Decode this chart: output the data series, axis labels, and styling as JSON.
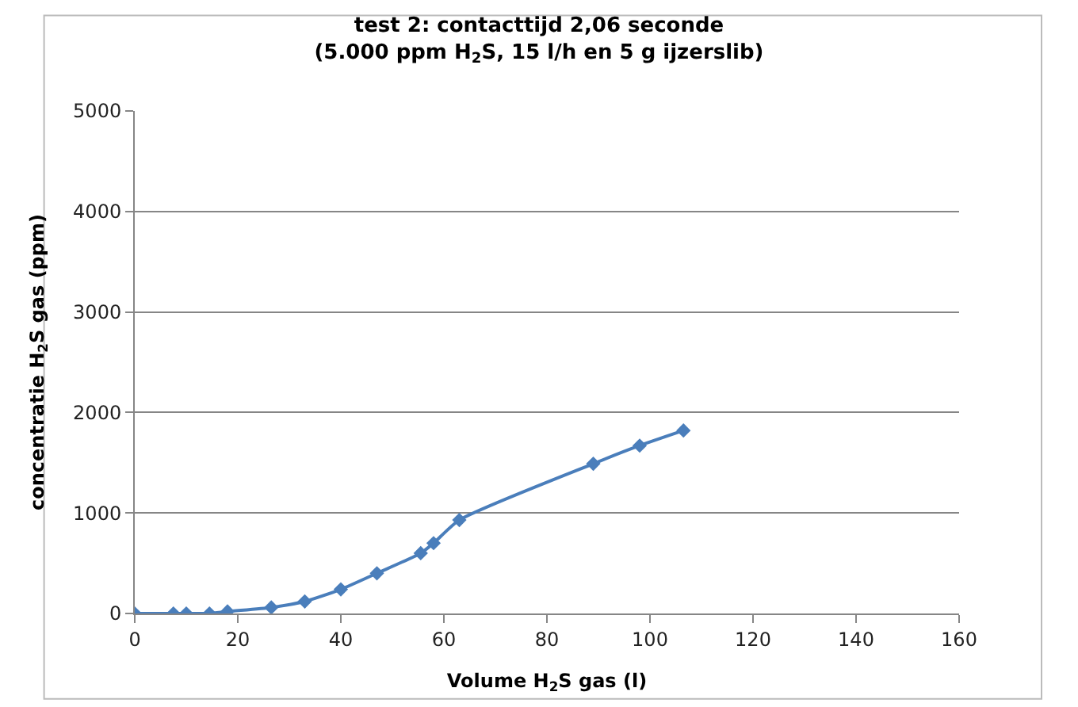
{
  "chart_data": {
    "type": "line",
    "title": "test 2: contacttijd 2,06 seconde",
    "subtitle": "(5.000 ppm H$_{2}$S, 15 l/h en 5 g ijzerslib)",
    "xlabel": "Volume H$_{2}$S gas (l)",
    "ylabel": "concentratie H$_{2}$S gas (ppm)",
    "x": [
      0,
      7.5,
      10,
      14.5,
      18,
      26.5,
      33,
      40,
      47,
      55.5,
      58,
      63,
      89,
      98,
      106.5
    ],
    "series": [
      {
        "color": "#4a7ebb",
        "values": [
          0,
          0,
          0,
          0,
          20,
          60,
          120,
          240,
          400,
          600,
          700,
          930,
          1490,
          1670,
          1820
        ]
      }
    ],
    "xlim": [
      0,
      160
    ],
    "xticks": [
      0,
      20,
      40,
      60,
      80,
      100,
      120,
      140,
      160
    ],
    "ylim": [
      0,
      5000
    ],
    "yticks": [
      0,
      1000,
      2000,
      3000,
      4000,
      5000
    ],
    "grid": "y",
    "marker": "diamond",
    "line_style": "solid"
  }
}
